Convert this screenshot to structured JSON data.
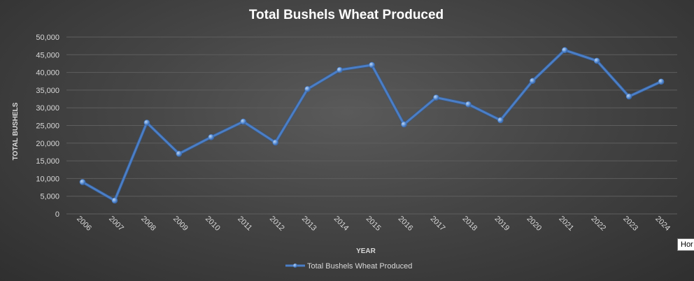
{
  "chart_data": {
    "type": "line",
    "title": "Total Bushels Wheat Produced",
    "xlabel": "YEAR",
    "ylabel": "TOTAL BUSHELS",
    "categories": [
      "2006",
      "2007",
      "2008",
      "2009",
      "2010",
      "2011",
      "2012",
      "2013",
      "2014",
      "2015",
      "2016",
      "2017",
      "2018",
      "2019",
      "2020",
      "2021",
      "2022",
      "2023",
      "2024"
    ],
    "series": [
      {
        "name": "Total Bushels Wheat Produced",
        "values": [
          9000,
          3800,
          25800,
          17000,
          21700,
          26100,
          20200,
          35300,
          40700,
          42100,
          25300,
          32900,
          31000,
          26500,
          37600,
          46300,
          43300,
          33200,
          37400
        ],
        "color": "#4a7ec7"
      }
    ],
    "ylim": [
      0,
      50000
    ],
    "yticks": [
      "0",
      "5,000",
      "10,000",
      "15,000",
      "20,000",
      "25,000",
      "30,000",
      "35,000",
      "40,000",
      "45,000",
      "50,000"
    ],
    "grid": true,
    "legend": "bottom"
  },
  "tooltip": {
    "text": "Hor"
  },
  "colors": {
    "background": "#454545",
    "line": "#4a7ec7",
    "text": "#d9d9d9",
    "grid": "#5e5e5e"
  }
}
